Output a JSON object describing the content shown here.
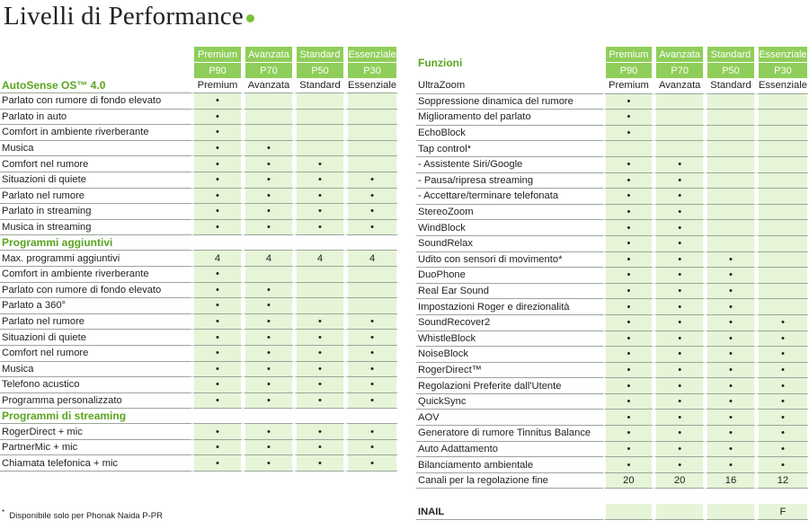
{
  "title": "Livelli di Performance",
  "levels": [
    {
      "name": "Premium",
      "code": "P90",
      "rowlabel": "Premium"
    },
    {
      "name": "Avanzata",
      "code": "P70",
      "rowlabel": "Avanzata"
    },
    {
      "name": "Standard",
      "code": "P50",
      "rowlabel": "Standard"
    },
    {
      "name": "Essenziale",
      "code": "P30",
      "rowlabel": "Essenziale"
    }
  ],
  "bullet": "•",
  "left": {
    "rows": [
      {
        "type": "section",
        "label": "AutoSense OS™ 4.0",
        "levels": true
      },
      {
        "label": "Parlato con rumore di fondo elevato",
        "v": [
          "•",
          "",
          "",
          ""
        ]
      },
      {
        "label": "Parlato in auto",
        "v": [
          "•",
          "",
          "",
          ""
        ]
      },
      {
        "label": "Comfort in ambiente riverberante",
        "v": [
          "•",
          "",
          "",
          ""
        ]
      },
      {
        "label": "Musica",
        "v": [
          "•",
          "•",
          "",
          ""
        ]
      },
      {
        "label": "Comfort nel rumore",
        "v": [
          "•",
          "•",
          "•",
          ""
        ]
      },
      {
        "label": "Situazioni di quiete",
        "v": [
          "•",
          "•",
          "•",
          "•"
        ]
      },
      {
        "label": "Parlato nel rumore",
        "v": [
          "•",
          "•",
          "•",
          "•"
        ]
      },
      {
        "label": "Parlato in streaming",
        "v": [
          "•",
          "•",
          "•",
          "•"
        ]
      },
      {
        "label": "Musica in streaming",
        "v": [
          "•",
          "•",
          "•",
          "•"
        ]
      },
      {
        "type": "section",
        "label": "Programmi aggiuntivi"
      },
      {
        "label": "Max. programmi aggiuntivi",
        "v": [
          "4",
          "4",
          "4",
          "4"
        ]
      },
      {
        "label": "Comfort in ambiente riverberante",
        "v": [
          "•",
          "",
          "",
          ""
        ]
      },
      {
        "label": "Parlato con rumore di fondo elevato",
        "v": [
          "•",
          "•",
          "",
          ""
        ]
      },
      {
        "label": "Parlato a 360°",
        "v": [
          "•",
          "•",
          "",
          ""
        ]
      },
      {
        "label": "Parlato nel rumore",
        "v": [
          "•",
          "•",
          "•",
          "•"
        ]
      },
      {
        "label": "Situazioni di quiete",
        "v": [
          "•",
          "•",
          "•",
          "•"
        ]
      },
      {
        "label": "Comfort nel rumore",
        "v": [
          "•",
          "•",
          "•",
          "•"
        ]
      },
      {
        "label": "Musica",
        "v": [
          "•",
          "•",
          "•",
          "•"
        ]
      },
      {
        "label": "Telefono acustico",
        "v": [
          "•",
          "•",
          "•",
          "•"
        ]
      },
      {
        "label": "Programma personalizzato",
        "v": [
          "•",
          "•",
          "•",
          "•"
        ]
      },
      {
        "type": "section",
        "label": "Programmi di streaming"
      },
      {
        "label": "RogerDirect + mic",
        "v": [
          "•",
          "•",
          "•",
          "•"
        ]
      },
      {
        "label": "PartnerMic + mic",
        "v": [
          "•",
          "•",
          "•",
          "•"
        ]
      },
      {
        "label": "Chiamata telefonica + mic",
        "v": [
          "•",
          "•",
          "•",
          "•"
        ]
      }
    ]
  },
  "right": {
    "heading": "Funzioni",
    "rows": [
      {
        "label": "UltraZoom",
        "levels": true
      },
      {
        "label": "Soppressione dinamica del rumore",
        "v": [
          "•",
          "",
          "",
          ""
        ]
      },
      {
        "label": "Miglioramento del parlato",
        "v": [
          "•",
          "",
          "",
          ""
        ]
      },
      {
        "label": "EchoBlock",
        "v": [
          "•",
          "",
          "",
          ""
        ]
      },
      {
        "label": "Tap control*",
        "v": [
          "",
          "",
          "",
          ""
        ]
      },
      {
        "label": "- Assistente Siri/Google",
        "v": [
          "•",
          "•",
          "",
          ""
        ]
      },
      {
        "label": "- Pausa/ripresa streaming",
        "v": [
          "•",
          "•",
          "",
          ""
        ]
      },
      {
        "label": "- Accettare/terminare telefonata",
        "v": [
          "•",
          "•",
          "",
          ""
        ]
      },
      {
        "label": "StereoZoom",
        "v": [
          "•",
          "•",
          "",
          ""
        ]
      },
      {
        "label": "WindBlock",
        "v": [
          "•",
          "•",
          "",
          ""
        ]
      },
      {
        "label": "SoundRelax",
        "v": [
          "•",
          "•",
          "",
          ""
        ]
      },
      {
        "label": "Udito con sensori di movimento*",
        "v": [
          "•",
          "•",
          "•",
          ""
        ]
      },
      {
        "label": "DuoPhone",
        "v": [
          "•",
          "•",
          "•",
          ""
        ]
      },
      {
        "label": "Real Ear Sound",
        "v": [
          "•",
          "•",
          "•",
          ""
        ]
      },
      {
        "label": "Impostazioni Roger e direzionalità",
        "v": [
          "•",
          "•",
          "•",
          ""
        ]
      },
      {
        "label": "SoundRecover2",
        "v": [
          "•",
          "•",
          "•",
          "•"
        ]
      },
      {
        "label": "WhistleBlock",
        "v": [
          "•",
          "•",
          "•",
          "•"
        ]
      },
      {
        "label": "NoiseBlock",
        "v": [
          "•",
          "•",
          "•",
          "•"
        ]
      },
      {
        "label": "RogerDirect™",
        "v": [
          "•",
          "•",
          "•",
          "•"
        ]
      },
      {
        "label": "Regolazioni Preferite dall'Utente",
        "v": [
          "•",
          "•",
          "•",
          "•"
        ]
      },
      {
        "label": "QuickSync",
        "v": [
          "•",
          "•",
          "•",
          "•"
        ]
      },
      {
        "label": "AOV",
        "v": [
          "•",
          "•",
          "•",
          "•"
        ]
      },
      {
        "label": "Generatore di rumore Tinnitus Balance",
        "v": [
          "•",
          "•",
          "•",
          "•"
        ]
      },
      {
        "label": "Auto Adattamento",
        "v": [
          "•",
          "•",
          "•",
          "•"
        ]
      },
      {
        "label": "Bilanciamento ambientale",
        "v": [
          "•",
          "•",
          "•",
          "•"
        ]
      },
      {
        "label": "Canali per la regolazione fine",
        "v": [
          "20",
          "20",
          "16",
          "12"
        ]
      },
      {
        "type": "gap"
      },
      {
        "label": "INAIL",
        "v": [
          "",
          "",
          "",
          "F"
        ],
        "bold": true
      }
    ]
  },
  "footnote": {
    "mark": "*",
    "text": "Disponibile solo per Phonak Naida P-PR"
  }
}
